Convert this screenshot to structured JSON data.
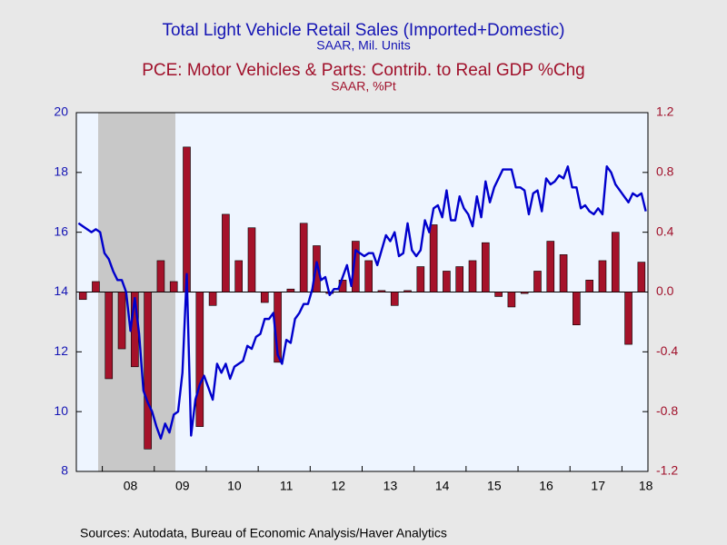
{
  "chart_data": {
    "type": "combo",
    "categories": [
      null,
      null,
      null,
      null,
      null,
      null,
      null,
      null,
      null,
      null,
      null,
      null,
      "08",
      null,
      null,
      null,
      null,
      null,
      null,
      null,
      null,
      null,
      null,
      null,
      "09",
      null,
      null,
      null,
      null,
      null,
      null,
      null,
      null,
      null,
      null,
      null,
      "10",
      null,
      null,
      null,
      null,
      null,
      null,
      null,
      null,
      null,
      null,
      null,
      "11",
      null,
      null,
      null,
      null,
      null,
      null,
      null,
      null,
      null,
      null,
      null,
      "12",
      null,
      null,
      null,
      null,
      null,
      null,
      null,
      null,
      null,
      null,
      null,
      "13",
      null,
      null,
      null,
      null,
      null,
      null,
      null,
      null,
      null,
      null,
      null,
      "14",
      null,
      null,
      null,
      null,
      null,
      null,
      null,
      null,
      null,
      null,
      null,
      "15",
      null,
      null,
      null,
      null,
      null,
      null,
      null,
      null,
      null,
      null,
      null,
      "16",
      null,
      null,
      null,
      null,
      null,
      null,
      null,
      null,
      null,
      null,
      null,
      "17",
      null,
      null,
      null,
      null,
      null,
      null,
      null,
      null,
      null,
      null,
      "18"
    ],
    "series": [
      {
        "name": "Total Light Vehicle Retail Sales (Imported+Domestic)",
        "unit": "SAAR, Mil. Units",
        "type": "line",
        "color": "#0000cc",
        "axis": "y",
        "values": [
          16.3,
          16.2,
          16.1,
          16.0,
          16.1,
          16.0,
          15.3,
          15.1,
          14.7,
          14.4,
          14.4,
          14.0,
          12.7,
          13.8,
          12.6,
          10.7,
          10.3,
          10.0,
          9.5,
          9.1,
          9.6,
          9.3,
          9.9,
          10.0,
          11.3,
          14.6,
          9.2,
          10.4,
          10.9,
          11.2,
          10.8,
          10.4,
          11.6,
          11.3,
          11.6,
          11.1,
          11.5,
          11.6,
          11.7,
          12.2,
          12.1,
          12.5,
          12.6,
          13.1,
          13.1,
          13.3,
          11.9,
          11.6,
          12.4,
          12.3,
          13.1,
          13.3,
          13.6,
          13.6,
          14.1,
          15.0,
          14.4,
          14.5,
          13.9,
          14.1,
          14.1,
          14.5,
          14.9,
          14.2,
          15.4,
          15.3,
          15.2,
          15.3,
          15.3,
          14.9,
          15.4,
          15.9,
          15.7,
          16.0,
          15.2,
          15.3,
          16.3,
          15.4,
          15.2,
          15.4,
          16.4,
          16.0,
          16.8,
          16.9,
          16.5,
          17.4,
          16.4,
          16.4,
          17.2,
          16.8,
          16.6,
          16.2,
          17.2,
          16.5,
          17.7,
          17.0,
          17.5,
          17.8,
          18.1,
          18.1,
          18.1,
          17.5,
          17.5,
          17.4,
          16.6,
          17.3,
          17.4,
          16.7,
          17.8,
          17.6,
          17.7,
          17.9,
          17.8,
          18.2,
          17.5,
          17.5,
          16.8,
          16.9,
          16.7,
          16.6,
          16.8,
          16.6,
          18.2,
          18.0,
          17.6,
          17.4,
          17.2,
          17.0,
          17.3,
          17.2,
          17.3,
          16.7
        ]
      },
      {
        "name": "PCE: Motor Vehicles & Parts: Contrib. to Real GDP %Chg",
        "unit": "SAAR, %Pt",
        "type": "bar",
        "color": "#a5122a",
        "axis": "y2",
        "values": [
          null,
          -0.05,
          null,
          null,
          0.07,
          null,
          null,
          -0.58,
          null,
          null,
          -0.38,
          null,
          null,
          -0.5,
          null,
          null,
          -1.05,
          null,
          null,
          0.21,
          null,
          null,
          0.07,
          null,
          null,
          0.97,
          null,
          null,
          -0.9,
          null,
          null,
          -0.09,
          null,
          null,
          0.52,
          null,
          null,
          0.21,
          null,
          null,
          0.43,
          null,
          null,
          -0.07,
          null,
          null,
          -0.47,
          null,
          null,
          0.02,
          null,
          null,
          0.46,
          null,
          null,
          0.31,
          null,
          null,
          -0.01,
          null,
          null,
          0.08,
          null,
          null,
          0.34,
          null,
          null,
          0.21,
          null,
          null,
          0.01,
          null,
          null,
          -0.09,
          null,
          null,
          0.01,
          null,
          null,
          0.17,
          null,
          null,
          0.45,
          null,
          null,
          0.14,
          null,
          null,
          0.17,
          null,
          null,
          0.21,
          null,
          null,
          0.33,
          null,
          null,
          -0.03,
          null,
          null,
          -0.1,
          null,
          null,
          -0.01,
          null,
          null,
          0.14,
          null,
          null,
          0.34,
          null,
          null,
          0.25,
          null,
          null,
          -0.22,
          null,
          null,
          0.08,
          null,
          null,
          0.21,
          null,
          null,
          0.4,
          null,
          null,
          -0.35,
          null,
          null,
          0.2,
          null
        ]
      }
    ],
    "ylim": [
      8,
      20
    ],
    "yticks": [
      8,
      10,
      12,
      14,
      16,
      18,
      20
    ],
    "y2lim": [
      -1.2,
      1.2
    ],
    "y2ticks": [
      -1.2,
      -0.8,
      -0.4,
      {
        "value": 0,
        "label": "0.0"
      },
      0.4,
      0.8,
      1.2
    ],
    "source": "Sources:  Autodata, Bureau of Economic Analysis/Haver Analytics"
  }
}
